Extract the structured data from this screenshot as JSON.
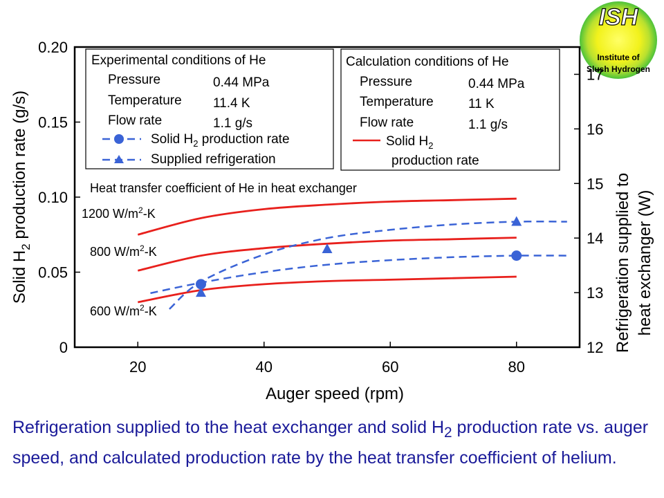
{
  "chart_data": {
    "type": "line",
    "xlabel": "Auger speed (rpm)",
    "xlim": [
      10,
      90
    ],
    "x_ticks": [
      20,
      40,
      60,
      80
    ],
    "ylabel_left": {
      "pre": "Solid H",
      "sub": "2",
      "post": " production rate (g/s)"
    },
    "ylim_left": [
      0,
      0.2
    ],
    "y_ticks_left": [
      "0",
      "0.05",
      "0.10",
      "0.15",
      "0.20"
    ],
    "ylabel_right_line1": "Refrigeration supplied to",
    "ylabel_right_line2": "heat exchanger  (W)",
    "ylim_right": [
      12,
      17.5
    ],
    "y_ticks_right": [
      "12",
      "13",
      "14",
      "15",
      "16",
      "17"
    ],
    "series": [
      {
        "label": {
          "pre": "1200 W/m",
          "sup": "2",
          "post": "-K"
        },
        "axis": "left",
        "style": "solid",
        "color": "#e8201c",
        "x": [
          20,
          30,
          40,
          50,
          60,
          70,
          80
        ],
        "y": [
          0.075,
          0.086,
          0.092,
          0.095,
          0.097,
          0.098,
          0.099
        ]
      },
      {
        "label": {
          "pre": "800 W/m",
          "sup": "2",
          "post": "-K"
        },
        "axis": "left",
        "style": "solid",
        "color": "#e8201c",
        "x": [
          20,
          30,
          40,
          50,
          60,
          70,
          80
        ],
        "y": [
          0.051,
          0.061,
          0.066,
          0.069,
          0.071,
          0.072,
          0.073
        ]
      },
      {
        "label": {
          "pre": "600 W/m",
          "sup": "2",
          "post": "-K"
        },
        "axis": "left",
        "style": "solid",
        "color": "#e8201c",
        "x": [
          20,
          30,
          40,
          50,
          60,
          70,
          80
        ],
        "y": [
          0.03,
          0.038,
          0.042,
          0.044,
          0.045,
          0.046,
          0.047
        ]
      },
      {
        "axis": "left",
        "style": "dashed",
        "marker": "circle",
        "color": "#3a63d6",
        "fit_x": [
          22,
          30,
          40,
          50,
          60,
          70,
          80,
          88
        ],
        "fit_y": [
          0.036,
          0.043,
          0.05,
          0.055,
          0.058,
          0.06,
          0.061,
          0.061
        ],
        "points_x": [
          30,
          80
        ],
        "points_y": [
          0.042,
          0.061
        ]
      },
      {
        "axis": "right",
        "style": "dashed",
        "marker": "triangle",
        "color": "#3a63d6",
        "fit_x": [
          25,
          30,
          40,
          50,
          60,
          70,
          80,
          88
        ],
        "fit_y": [
          12.7,
          13.2,
          13.7,
          14.0,
          14.15,
          14.25,
          14.3,
          14.3
        ],
        "points_x": [
          30,
          50,
          80
        ],
        "points_y": [
          13.0,
          13.8,
          14.3
        ]
      }
    ],
    "heat_transfer_title": "Heat transfer coefficient of He in heat exchanger",
    "experimental_box": {
      "title": "Experimental conditions of He",
      "rows": [
        {
          "name": "Pressure",
          "value": "0.44 MPa"
        },
        {
          "name": "Temperature",
          "value": "11.4 K"
        },
        {
          "name": "Flow rate",
          "value": "1.1 g/s"
        }
      ],
      "legend": [
        {
          "marker": "circle",
          "pre": "Solid H",
          "sub": "2",
          "post": " production rate"
        },
        {
          "marker": "triangle",
          "pre": "Supplied refrigeration",
          "sub": "",
          "post": ""
        }
      ]
    },
    "calculation_box": {
      "title": "Calculation conditions of He",
      "rows": [
        {
          "name": "Pressure",
          "value": "0.44 MPa"
        },
        {
          "name": "Temperature",
          "value": "11 K"
        },
        {
          "name": "Flow rate",
          "value": "1.1 g/s"
        }
      ],
      "legend_pre": "Solid H",
      "legend_sub": "2",
      "legend_line2": "production rate"
    }
  },
  "logo": {
    "acronym": "ISH",
    "line1": "Institute of",
    "line2": "Slush Hydrogen"
  },
  "caption": {
    "pre": "Refrigeration supplied to the heat exchanger and solid H",
    "sub": "2",
    "post": " production rate vs. auger speed, and calculated production rate by the heat transfer coefficient of helium."
  },
  "colors": {
    "red_line": "#e8201c",
    "blue_dash": "#3a63d6",
    "caption": "#1a1a99"
  }
}
